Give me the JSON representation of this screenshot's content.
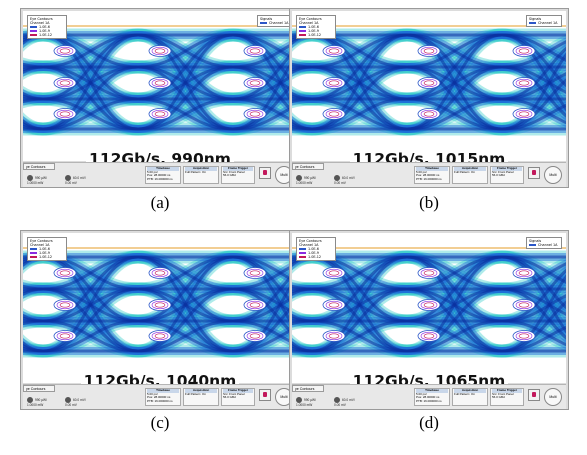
{
  "panels": [
    {
      "id": "a",
      "label": "112Gb/s, 990nm",
      "caption": "(a)",
      "tab_label": "ye Contours",
      "legend_title": "Eye Contours",
      "legend_channel": "Channel 1A",
      "legend_rows": [
        "1.0E-6",
        "1.0E-9",
        "1.0E-12"
      ],
      "signals_title": "Signals",
      "signals_channel": "Channel 1A",
      "ch1_line1": "990 µW/",
      "ch1_line2": "1.0000 mW",
      "ch2_line1": "60.0 mV/",
      "ch2_line2": "0.00 mV",
      "timebase_title": "Timebase",
      "timebase_line1": "5.00 ps/",
      "timebase_line2": "Pos: 28.00000 ns",
      "timebase_line3": "PTB: 16.000000 ns",
      "acquisition_title": "Acquisition",
      "acquisition_line1": "Full Pattern: On",
      "frame_title": "Frame Trigger",
      "frame_line1": "Src: Front Panel",
      "frame_line2": "56.0 GBd",
      "multi": "Multi"
    },
    {
      "id": "b",
      "label": "112Gb/s, 1015nm",
      "caption": "(b)",
      "tab_label": "ye Contours",
      "legend_title": "Eye Contours",
      "legend_channel": "Channel 1A",
      "legend_rows": [
        "1.0E-6",
        "1.0E-9",
        "1.0E-12"
      ],
      "signals_title": "Signals",
      "signals_channel": "Channel 1A",
      "ch1_line1": "990 µW/",
      "ch1_line2": "1.0000 mW",
      "ch2_line1": "60.0 mV/",
      "ch2_line2": "0.00 mV",
      "timebase_title": "Timebase",
      "timebase_line1": "5.00 ps/",
      "timebase_line2": "Pos: 28.00000 ns",
      "timebase_line3": "PTB: 16.000000 ns",
      "acquisition_title": "Acquisition",
      "acquisition_line1": "Full Pattern: On",
      "frame_title": "Frame Trigger",
      "frame_line1": "Src: Front Panel",
      "frame_line2": "56.0 GBd",
      "multi": "Multi"
    },
    {
      "id": "c",
      "label": "112Gb/s, 1040nm",
      "caption": "(c)",
      "tab_label": "ye Contours",
      "legend_title": "Eye Contours",
      "legend_channel": "Channel 1A",
      "legend_rows": [
        "1.0E-6",
        "1.0E-9",
        "1.0E-12"
      ],
      "signals_title": "",
      "signals_channel": "",
      "ch1_line1": "990 µW/",
      "ch1_line2": "1.0000 mW",
      "ch2_line1": "60.0 mV/",
      "ch2_line2": "0.00 mV",
      "timebase_title": "Timebase",
      "timebase_line1": "5.00 ps/",
      "timebase_line2": "Pos: 28.00000 ns",
      "timebase_line3": "PTB: 16.000000 ns",
      "acquisition_title": "Acquisition",
      "acquisition_line1": "Full Pattern: On",
      "frame_title": "Frame Trigger",
      "frame_line1": "Src: Front Panel",
      "frame_line2": "56.0 GBd",
      "multi": "Multi"
    },
    {
      "id": "d",
      "label": "112Gb/s, 1065nm",
      "caption": "(d)",
      "tab_label": "ye Contours",
      "legend_title": "Eye Contours",
      "legend_channel": "Channel 1A",
      "legend_rows": [
        "1.0E-6",
        "1.0E-9",
        "1.0E-12"
      ],
      "signals_title": "Signals",
      "signals_channel": "Channel 1A",
      "ch1_line1": "990 µW/",
      "ch1_line2": "1.0000 mW",
      "ch2_line1": "60.0 mV/",
      "ch2_line2": "0.00 mV",
      "timebase_title": "Timebase",
      "timebase_line1": "5.00 ps/",
      "timebase_line2": "Pos: 28.00000 ns",
      "timebase_line3": "PTB: 16.000000 ns",
      "acquisition_title": "Acquisition",
      "acquisition_line1": "Full Pattern: On",
      "frame_title": "Frame Trigger",
      "frame_line1": "Src: Front Panel",
      "frame_line2": "56.0 GBd",
      "multi": "Multi"
    }
  ],
  "colors": {
    "eye_outer": "#19c7c2",
    "eye_mid": "#1a66d9",
    "eye_core": "#0b2f9e",
    "eye_noise_hi": "#e7a53a",
    "legend_1e6": "#2b56c7",
    "legend_1e9": "#8a2be2",
    "legend_1e12": "#c2185b"
  }
}
